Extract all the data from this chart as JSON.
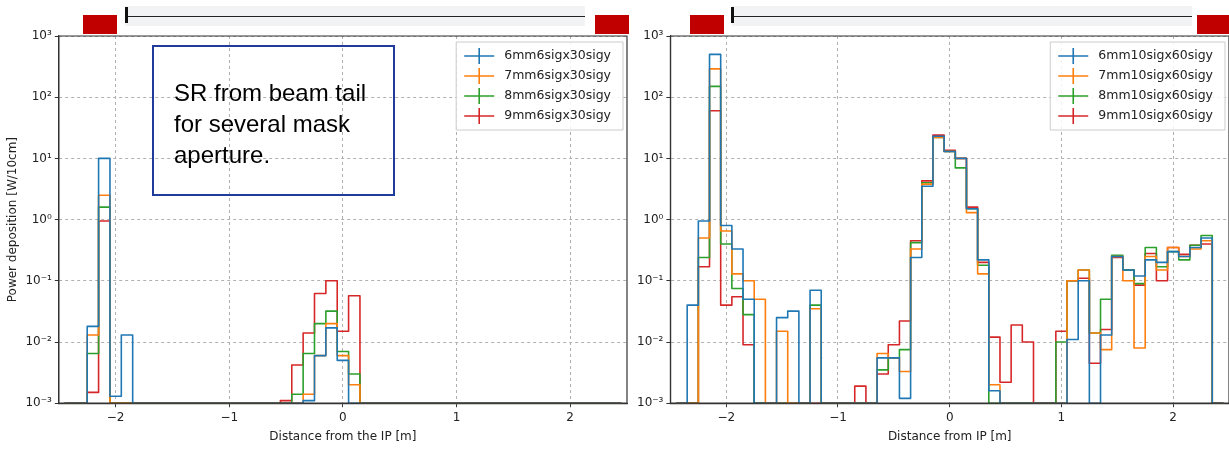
{
  "chart_data": [
    {
      "type": "histogram",
      "xlabel": "Distance from the IP [m]",
      "ylabel": "Power deposition [W/10cm]",
      "annotations": [
        "SR from beam tail for several mask aperture."
      ],
      "bins": [
        -2.45,
        -2.35,
        -2.25,
        -2.15,
        -2.05,
        -1.95,
        -1.85,
        -1.75,
        -1.65,
        -1.55,
        -1.45,
        -1.35,
        -1.25,
        -1.15,
        -1.05,
        -0.95,
        -0.85,
        -0.75,
        -0.65,
        -0.55,
        -0.45,
        -0.35,
        -0.25,
        -0.15,
        -0.05,
        0.05,
        0.15,
        0.25,
        0.35,
        0.45,
        0.55,
        0.65,
        0.75,
        0.85,
        0.95,
        1.05,
        1.15,
        1.25,
        1.35,
        1.45,
        1.55,
        1.65,
        1.75,
        1.85,
        1.95,
        2.05,
        2.15,
        2.25,
        2.35,
        2.45
      ],
      "series": [
        {
          "name": "6mm6sigx30sigy",
          "color": "#1f77b4",
          "values": [
            null,
            null,
            0.018,
            10,
            0.0013,
            0.013,
            null,
            null,
            null,
            null,
            null,
            null,
            null,
            null,
            null,
            null,
            null,
            null,
            null,
            null,
            null,
            0.0011,
            0.006,
            0.017,
            0.005,
            null,
            null,
            null,
            null,
            null,
            null,
            null,
            null,
            null,
            null,
            null,
            null,
            null,
            null,
            null,
            null,
            null,
            null,
            null,
            null,
            null,
            null,
            null,
            null
          ]
        },
        {
          "name": "7mm6sigx30sigy",
          "color": "#ff7f0e",
          "values": [
            null,
            null,
            0.013,
            2.5,
            null,
            null,
            null,
            null,
            null,
            null,
            null,
            null,
            null,
            null,
            null,
            null,
            null,
            null,
            null,
            null,
            null,
            0.0014,
            0.006,
            0.02,
            0.006,
            0.002,
            null,
            null,
            null,
            null,
            null,
            null,
            null,
            null,
            null,
            null,
            null,
            null,
            null,
            null,
            null,
            null,
            null,
            null,
            null,
            null,
            null,
            null,
            null
          ]
        },
        {
          "name": "8mm6sigx30sigy",
          "color": "#2ca02c",
          "values": [
            null,
            null,
            0.0065,
            1.6,
            null,
            null,
            null,
            null,
            null,
            null,
            null,
            null,
            null,
            null,
            null,
            null,
            null,
            null,
            null,
            null,
            0.0014,
            0.0065,
            0.02,
            0.032,
            0.007,
            0.003,
            null,
            null,
            null,
            null,
            null,
            null,
            null,
            null,
            null,
            null,
            null,
            null,
            null,
            null,
            null,
            null,
            null,
            null,
            null,
            null,
            null,
            null,
            null
          ]
        },
        {
          "name": "9mm6sigx30sigy",
          "color": "#d62728",
          "values": [
            null,
            null,
            0.0015,
            0.95,
            null,
            null,
            null,
            null,
            null,
            null,
            null,
            null,
            null,
            null,
            null,
            null,
            null,
            null,
            null,
            0.0011,
            0.0042,
            0.014,
            0.062,
            0.1,
            0.015,
            0.057,
            null,
            null,
            null,
            null,
            null,
            null,
            null,
            null,
            null,
            null,
            null,
            null,
            null,
            null,
            null,
            null,
            null,
            null,
            null,
            null,
            null,
            null,
            null
          ]
        }
      ],
      "xlim": [
        -2.5,
        2.5
      ],
      "xticks": [
        -2,
        -1,
        0,
        1,
        2
      ],
      "ylim": [
        0.001,
        1000
      ],
      "yticks": [
        {
          "value": 0.001,
          "label": "10⁻³"
        },
        {
          "value": 0.01,
          "label": "10⁻²"
        },
        {
          "value": 0.1,
          "label": "10⁻¹"
        },
        {
          "value": 1,
          "label": "10⁰"
        },
        {
          "value": 10,
          "label": "10¹"
        },
        {
          "value": 100,
          "label": "10²"
        },
        {
          "value": 1000,
          "label": "10³"
        }
      ],
      "log": "y",
      "grid": true,
      "legend": "top right"
    },
    {
      "type": "histogram",
      "xlabel": "Distance from IP [m]",
      "bins": [
        -2.45,
        -2.35,
        -2.25,
        -2.15,
        -2.05,
        -1.95,
        -1.85,
        -1.75,
        -1.65,
        -1.55,
        -1.45,
        -1.35,
        -1.25,
        -1.15,
        -1.05,
        -0.95,
        -0.85,
        -0.75,
        -0.65,
        -0.55,
        -0.45,
        -0.35,
        -0.25,
        -0.15,
        -0.05,
        0.05,
        0.15,
        0.25,
        0.35,
        0.45,
        0.55,
        0.65,
        0.75,
        0.85,
        0.95,
        1.05,
        1.15,
        1.25,
        1.35,
        1.45,
        1.55,
        1.65,
        1.75,
        1.85,
        1.95,
        2.05,
        2.15,
        2.25,
        2.35,
        2.45
      ],
      "series": [
        {
          "name": "6mm10sigx60sigy",
          "color": "#1f77b4",
          "values": [
            null,
            0.04,
            0.95,
            500,
            0.8,
            0.33,
            0.05,
            null,
            null,
            0.025,
            0.032,
            null,
            0.07,
            null,
            null,
            null,
            null,
            null,
            0.0055,
            0.0055,
            0.0012,
            0.24,
            3.5,
            23,
            13,
            10,
            1.5,
            0.22,
            0.0016,
            null,
            null,
            null,
            null,
            null,
            null,
            0.011,
            0.1,
            null,
            0.013,
            0.25,
            0.15,
            0.12,
            0.22,
            0.2,
            0.3,
            0.25,
            0.35,
            0.5,
            null
          ]
        },
        {
          "name": "7mm10sigx60sigy",
          "color": "#ff7f0e",
          "values": [
            null,
            null,
            0.5,
            290,
            0.65,
            0.13,
            0.1,
            0.05,
            null,
            0.015,
            null,
            null,
            0.035,
            null,
            null,
            null,
            null,
            null,
            0.0065,
            0.0055,
            0.0033,
            0.33,
            3.8,
            22,
            13,
            10,
            1.3,
            0.13,
            0.002,
            null,
            null,
            null,
            null,
            null,
            null,
            0.1,
            0.15,
            0.014,
            0.0075,
            0.25,
            0.1,
            0.008,
            0.25,
            0.15,
            0.35,
            0.25,
            0.33,
            0.45,
            null
          ]
        },
        {
          "name": "8mm10sigx60sigy",
          "color": "#2ca02c",
          "values": [
            null,
            null,
            0.24,
            150,
            0.4,
            0.075,
            0.028,
            null,
            null,
            null,
            null,
            null,
            0.04,
            null,
            null,
            null,
            null,
            null,
            0.0035,
            0.0055,
            0.0075,
            0.42,
            4.0,
            22,
            13,
            7,
            1.5,
            0.18,
            null,
            null,
            null,
            null,
            null,
            null,
            0.01,
            0.1,
            0.15,
            0.014,
            0.05,
            0.26,
            0.15,
            0.09,
            0.35,
            0.17,
            0.3,
            0.22,
            0.38,
            0.55,
            null
          ]
        },
        {
          "name": "9mm10sigx60sigy",
          "color": "#d62728",
          "values": [
            null,
            null,
            0.17,
            60,
            0.04,
            0.055,
            0.009,
            null,
            null,
            null,
            null,
            null,
            null,
            null,
            null,
            null,
            0.0019,
            null,
            0.003,
            0.009,
            0.022,
            0.45,
            4.3,
            24,
            13.5,
            10,
            1.6,
            0.2,
            0.012,
            0.0022,
            0.019,
            0.01,
            null,
            null,
            0.015,
            0.1,
            0.11,
            0.0045,
            0.016,
            0.24,
            0.15,
            0.085,
            0.28,
            0.1,
            0.35,
            0.27,
            0.38,
            0.4,
            null
          ]
        }
      ],
      "xlim": [
        -2.5,
        2.5
      ],
      "xticks": [
        -2,
        -1,
        0,
        1,
        2
      ],
      "ylim": [
        0.001,
        1000
      ],
      "yticks": [
        {
          "value": 0.001,
          "label": "10⁻³"
        },
        {
          "value": 0.01,
          "label": "10⁻²"
        },
        {
          "value": 0.1,
          "label": "10⁻¹"
        },
        {
          "value": 1,
          "label": "10⁰"
        },
        {
          "value": 10,
          "label": "10¹"
        },
        {
          "value": 100,
          "label": "10²"
        },
        {
          "value": 1000,
          "label": "10³"
        }
      ],
      "log": "y",
      "grid": true,
      "legend": "top right"
    }
  ]
}
